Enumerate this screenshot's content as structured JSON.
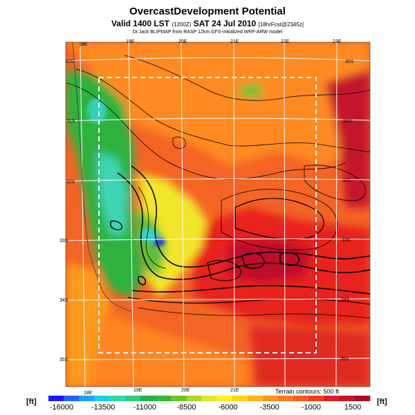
{
  "title": "OvercastDevelopment Potential",
  "subtitle_main": "Valid 1400 LST",
  "subtitle_small": "(1200Z)",
  "subtitle_date": "SAT 24 Jul 2010",
  "subtitle_forecast": "[18hrFcst@2345z]",
  "credit": "Dr.Jack BLIPMAP from RASP 12km GFS-initialized WRF-ARW model",
  "terrain_note": "Terrain contours: 500 ft",
  "unit_left": "[ft]",
  "unit_right": "[ft]",
  "colorbar": {
    "labels": [
      "-16000",
      "-13500",
      "-11000",
      "-8500",
      "-6000",
      "-3500",
      "-1000",
      "1500"
    ],
    "colors": [
      "#1a1aff",
      "#2260ff",
      "#1f9fff",
      "#19d0e8",
      "#2fd9b0",
      "#2fc980",
      "#24b24a",
      "#34b834",
      "#6cc52c",
      "#a8d82a",
      "#dfe82a",
      "#fff01e",
      "#ffd219",
      "#ffb21a",
      "#ff9420",
      "#ff7a22",
      "#ff5a22",
      "#f53b1e",
      "#e01e24",
      "#c81428",
      "#a70c2c"
    ]
  },
  "map": {
    "lon_top": [
      "18E",
      "19E",
      "20E",
      "21E",
      "22E",
      "23E"
    ],
    "lon_bottom": [
      "18E",
      "19E",
      "20E",
      "21E"
    ],
    "lat_left": [
      "30S",
      "31S",
      "32S",
      "33S",
      "34S",
      "35S"
    ],
    "lat_right": [
      "30S",
      "31S",
      "32S",
      "33S",
      "34S",
      "35S"
    ],
    "colors": {
      "green": "#23b23e",
      "cyan": "#2fd6c0",
      "blue": "#2a3fe0",
      "yellow": "#f2ef2e",
      "orange": "#ff9a1f",
      "red": "#f04a1e",
      "darkred": "#d8182a",
      "maroon": "#b00c2c"
    }
  }
}
